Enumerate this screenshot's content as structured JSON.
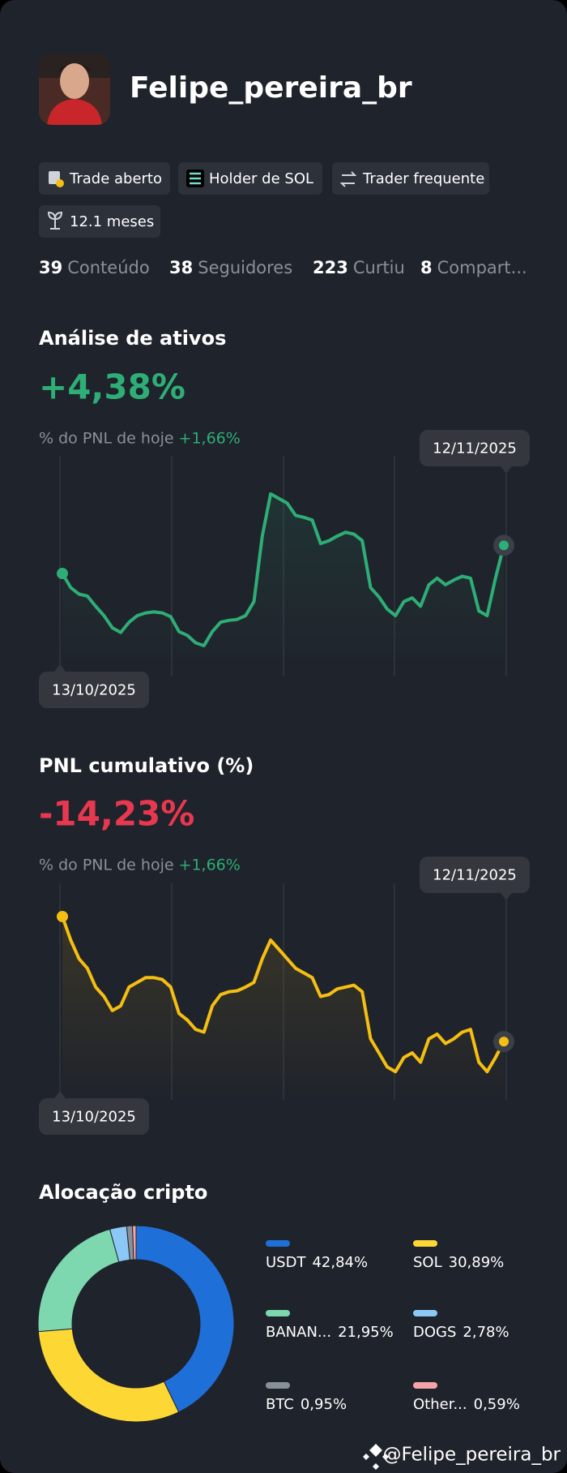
{
  "profile": {
    "name": "Felipe_pereira_br",
    "badges": [
      "Trade aberto",
      "Holder de SOL",
      "Trader frequente",
      "12.1 meses"
    ],
    "stats": [
      {
        "value": 39,
        "label": "Conteúdo"
      },
      {
        "value": 38,
        "label": "Seguidores"
      },
      {
        "value": 223,
        "label": "Curtiu"
      },
      {
        "value": 8,
        "label": "Compart..."
      }
    ]
  },
  "chart_data": [
    {
      "type": "line",
      "title": "Análise de ativos",
      "headline": "+4,38%",
      "subtitle": "% do PNL de hoje",
      "subtitle_value": "+1,66%",
      "start_label": "13/10/2025",
      "end_label": "12/11/2025",
      "color": "#2eae76",
      "ylim": [
        0,
        200
      ],
      "values": [
        90,
        75,
        68,
        66,
        55,
        45,
        32,
        27,
        38,
        45,
        48,
        49,
        48,
        44,
        28,
        24,
        16,
        13,
        28,
        38,
        40,
        41,
        45,
        60,
        130,
        175,
        170,
        165,
        152,
        150,
        147,
        122,
        125,
        130,
        134,
        132,
        125,
        75,
        65,
        52,
        45,
        60,
        64,
        55,
        78,
        85,
        78,
        83,
        87,
        85,
        50,
        45,
        85,
        120
      ]
    },
    {
      "type": "line",
      "title": "PNL cumulativo (%)",
      "headline": "-14,23%",
      "subtitle": "% do PNL de hoje",
      "subtitle_value": "+1,66%",
      "start_label": "13/10/2025",
      "end_label": "12/11/2025",
      "color": "#f5be12",
      "ylim": [
        0,
        220
      ],
      "values": [
        195,
        170,
        150,
        140,
        120,
        110,
        95,
        100,
        120,
        125,
        130,
        130,
        128,
        120,
        92,
        85,
        75,
        72,
        100,
        112,
        115,
        116,
        120,
        125,
        150,
        170,
        160,
        150,
        140,
        135,
        130,
        110,
        112,
        118,
        120,
        122,
        115,
        65,
        50,
        35,
        30,
        45,
        50,
        40,
        65,
        70,
        60,
        65,
        72,
        75,
        40,
        30,
        45,
        62
      ]
    },
    {
      "type": "pie",
      "title": "Alocação cripto",
      "categories": [
        "USDT",
        "SOL",
        "BANAN...",
        "DOGS",
        "BTC",
        "Other..."
      ],
      "values": [
        42.84,
        30.89,
        21.95,
        2.78,
        0.95,
        0.59
      ],
      "value_labels": [
        "42,84%",
        "30,89%",
        "21,95%",
        "2,78%",
        "0,95%",
        "0,59%"
      ],
      "colors": [
        "#1f6fd9",
        "#fdd835",
        "#7dd8b0",
        "#8cc8f5",
        "#8a9099",
        "#f5a3a8"
      ]
    }
  ],
  "footer": "@Felipe_pereira_br"
}
